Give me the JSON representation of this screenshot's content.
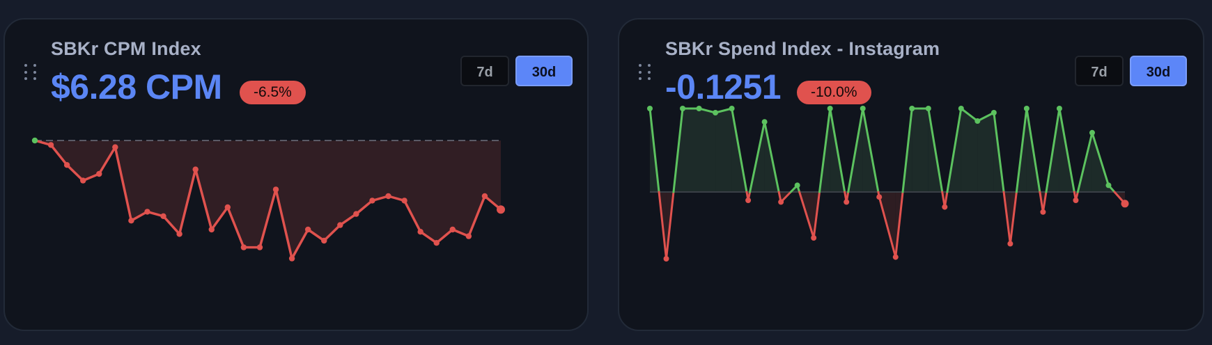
{
  "colors": {
    "page_bg": "#161c2a",
    "card_bg": "#10141d",
    "accent_blue": "#5b86f5",
    "negative_red": "#e0524e",
    "positive_green": "#5cc25f"
  },
  "cards": [
    {
      "title": "SBKr CPM Index",
      "value": "$6.28 CPM",
      "change_badge": "-6.5%",
      "range_buttons": [
        {
          "label": "7d",
          "active": false
        },
        {
          "label": "30d",
          "active": true
        }
      ]
    },
    {
      "title": "SBKr Spend Index - Instagram",
      "value": "-0.1251",
      "change_badge": "-10.0%",
      "range_buttons": [
        {
          "label": "7d",
          "active": false
        },
        {
          "label": "30d",
          "active": true
        }
      ]
    }
  ],
  "chart_data": [
    {
      "type": "line",
      "title": "SBKr CPM Index",
      "xlabel": "",
      "ylabel": "",
      "reference_line": "dashed baseline at first value",
      "grid": false,
      "note": "relative values (pixel-derived, 0 = starting baseline, negative = below baseline)",
      "x": [
        1,
        2,
        3,
        4,
        5,
        6,
        7,
        8,
        9,
        10,
        11,
        12,
        13,
        14,
        15,
        16,
        17,
        18,
        19,
        20,
        21,
        22,
        23,
        24,
        25,
        26,
        27,
        28,
        29,
        30
      ],
      "values": [
        0,
        -2,
        -11,
        -18,
        -15,
        -3,
        -36,
        -32,
        -34,
        -42,
        -13,
        -40,
        -30,
        -48,
        -48,
        -22,
        -53,
        -40,
        -45,
        -38,
        -33,
        -27,
        -25,
        -27,
        -41,
        -46,
        -40,
        -43,
        -25,
        -31
      ]
    },
    {
      "type": "area",
      "title": "SBKr Spend Index - Instagram",
      "xlabel": "",
      "ylabel": "",
      "baseline": 0,
      "grid": false,
      "note": "relative values (pixel-derived); positive filled green, negative filled red",
      "x": [
        1,
        2,
        3,
        4,
        5,
        6,
        7,
        8,
        9,
        10,
        11,
        12,
        13,
        14,
        15,
        16,
        17,
        18,
        19,
        20,
        21,
        22,
        23,
        24,
        25,
        26,
        27,
        28,
        29,
        30
      ],
      "values": [
        100,
        -80,
        100,
        100,
        95,
        100,
        -10,
        84,
        -12,
        8,
        -55,
        100,
        -12,
        100,
        -6,
        -78,
        100,
        100,
        -18,
        100,
        85,
        95,
        -62,
        100,
        -24,
        100,
        -10,
        71,
        8,
        -14
      ]
    }
  ]
}
